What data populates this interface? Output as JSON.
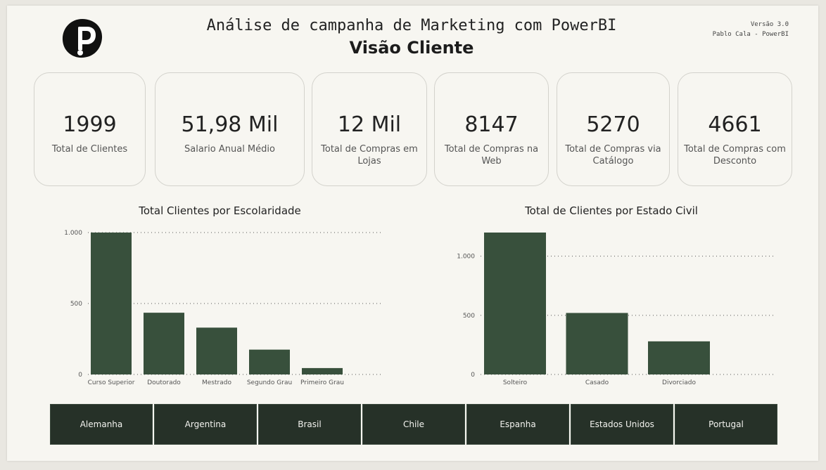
{
  "header": {
    "title": "Análise de campanha de Marketing com PowerBI",
    "subtitle": "Visão Cliente",
    "version": "Versão 3.0",
    "author": "Pablo Cala - PowerBI"
  },
  "kpis": [
    {
      "value": "1999",
      "label": "Total de Clientes"
    },
    {
      "value": "51,98 Mil",
      "label": "Salario Anual Médio"
    },
    {
      "value": "12 Mil",
      "label": "Total de Compras em Lojas"
    },
    {
      "value": "8147",
      "label": "Total de Compras na Web"
    },
    {
      "value": "5270",
      "label": "Total de Compras via Catálogo"
    },
    {
      "value": "4661",
      "label": "Total de Compras com Desconto"
    }
  ],
  "colors": {
    "bar": "#38503c",
    "tab_bg": "#263128",
    "background": "#f7f6f1"
  },
  "chart_data": [
    {
      "type": "bar",
      "title": "Total Clientes por Escolaridade",
      "categories": [
        "Curso Superior",
        "Doutorado",
        "Mestrado",
        "Segundo Grau",
        "Primeiro Grau"
      ],
      "values": [
        1000,
        435,
        330,
        175,
        45
      ],
      "yticks": [
        "1.000",
        "500",
        "0"
      ],
      "ytick_values": [
        1000,
        500,
        0
      ],
      "ylim": [
        0,
        1000
      ],
      "grid": true
    },
    {
      "type": "bar",
      "title": "Total de Clientes por Estado Civil",
      "categories": [
        "Solteiro",
        "Casado",
        "Divorciado"
      ],
      "values": [
        1200,
        520,
        280
      ],
      "yticks": [
        "1.000",
        "500",
        "0"
      ],
      "ytick_values": [
        1000,
        500,
        0
      ],
      "ylim": [
        0,
        1200
      ],
      "grid": true
    }
  ],
  "country_tabs": [
    "Alemanha",
    "Argentina",
    "Brasil",
    "Chile",
    "Espanha",
    "Estados Unidos",
    "Portugal"
  ]
}
